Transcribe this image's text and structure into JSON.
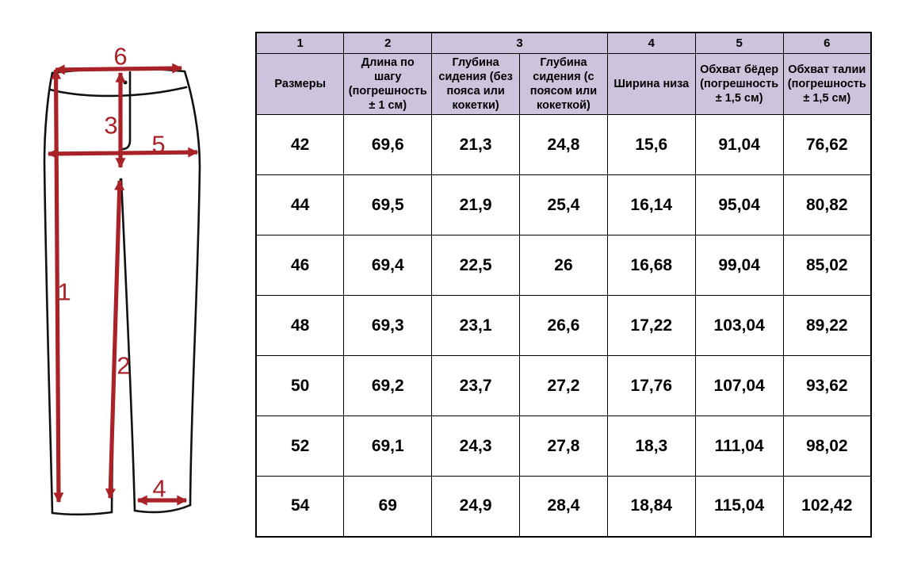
{
  "diagram": {
    "description": "pants-measurement-drawing",
    "arrow_color": "#a82228",
    "outline_color": "#111111",
    "measure_labels": [
      "1",
      "2",
      "3",
      "4",
      "5",
      "6"
    ]
  },
  "table": {
    "header_bg_color": "#cdc3dc",
    "col_numbers": [
      "1",
      "2",
      "3",
      "4",
      "5",
      "6"
    ],
    "columns": [
      "Размеры",
      "Длина по шагу (погрешность ± 1 см)",
      "Глубина сидения (без пояса или кокетки)",
      "Глубина сидения  (с поясом или кокеткой)",
      "Ширина низа",
      "Обхват бёдер (погрешность ± 1,5 см)",
      "Обхват талии (погрешность ± 1,5 см)"
    ],
    "rows": [
      [
        "42",
        "69,6",
        "21,3",
        "24,8",
        "15,6",
        "91,04",
        "76,62"
      ],
      [
        "44",
        "69,5",
        "21,9",
        "25,4",
        "16,14",
        "95,04",
        "80,82"
      ],
      [
        "46",
        "69,4",
        "22,5",
        "26",
        "16,68",
        "99,04",
        "85,02"
      ],
      [
        "48",
        "69,3",
        "23,1",
        "26,6",
        "17,22",
        "103,04",
        "89,22"
      ],
      [
        "50",
        "69,2",
        "23,7",
        "27,2",
        "17,76",
        "107,04",
        "93,62"
      ],
      [
        "52",
        "69,1",
        "24,3",
        "27,8",
        "18,3",
        "111,04",
        "98,02"
      ],
      [
        "54",
        "69",
        "24,9",
        "28,4",
        "18,84",
        "115,04",
        "102,42"
      ]
    ]
  }
}
